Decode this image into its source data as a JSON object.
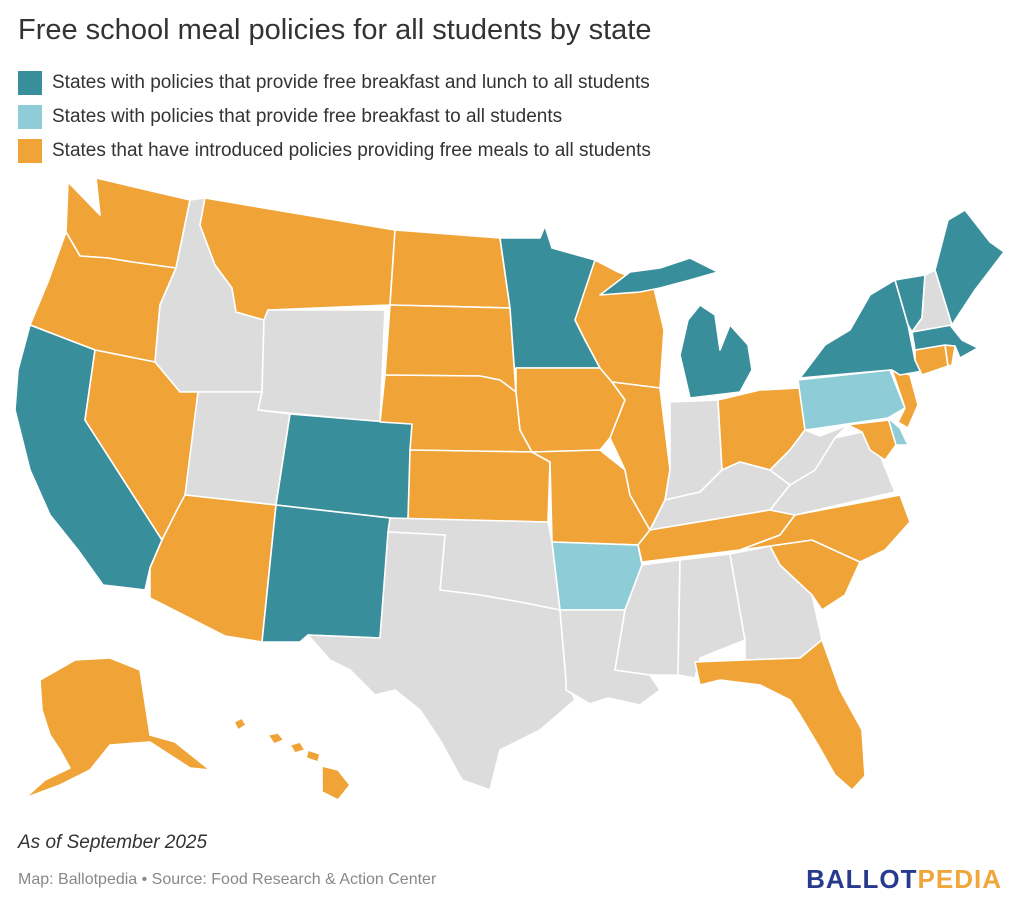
{
  "title": "Free school meal policies for all students by state",
  "colors": {
    "breakfast_and_lunch": "#398e9b",
    "breakfast_only": "#8ecdd7",
    "introduced": "#f0a336",
    "no_policy": "#dcdcdc",
    "background": "#ffffff"
  },
  "legend": [
    {
      "category": "breakfast_and_lunch",
      "label": "States with policies that provide free breakfast and lunch to all students"
    },
    {
      "category": "breakfast_only",
      "label": "States with policies that provide free breakfast to all students"
    },
    {
      "category": "introduced",
      "label": "States that have introduced policies providing free meals to all students"
    }
  ],
  "states": [
    {
      "abbr": "WA",
      "category": "introduced"
    },
    {
      "abbr": "OR",
      "category": "introduced"
    },
    {
      "abbr": "CA",
      "category": "breakfast_and_lunch"
    },
    {
      "abbr": "ID",
      "category": "no_policy"
    },
    {
      "abbr": "NV",
      "category": "introduced"
    },
    {
      "abbr": "MT",
      "category": "introduced"
    },
    {
      "abbr": "WY",
      "category": "no_policy"
    },
    {
      "abbr": "UT",
      "category": "no_policy"
    },
    {
      "abbr": "AZ",
      "category": "introduced"
    },
    {
      "abbr": "CO",
      "category": "breakfast_and_lunch"
    },
    {
      "abbr": "NM",
      "category": "breakfast_and_lunch"
    },
    {
      "abbr": "ND",
      "category": "introduced"
    },
    {
      "abbr": "SD",
      "category": "introduced"
    },
    {
      "abbr": "NE",
      "category": "introduced"
    },
    {
      "abbr": "KS",
      "category": "introduced"
    },
    {
      "abbr": "OK",
      "category": "no_policy"
    },
    {
      "abbr": "TX",
      "category": "no_policy"
    },
    {
      "abbr": "MN",
      "category": "breakfast_and_lunch"
    },
    {
      "abbr": "IA",
      "category": "introduced"
    },
    {
      "abbr": "MO",
      "category": "introduced"
    },
    {
      "abbr": "AR",
      "category": "breakfast_only"
    },
    {
      "abbr": "LA",
      "category": "no_policy"
    },
    {
      "abbr": "WI",
      "category": "introduced"
    },
    {
      "abbr": "IL",
      "category": "introduced"
    },
    {
      "abbr": "MI",
      "category": "breakfast_and_lunch"
    },
    {
      "abbr": "IN",
      "category": "no_policy"
    },
    {
      "abbr": "OH",
      "category": "introduced"
    },
    {
      "abbr": "KY",
      "category": "no_policy"
    },
    {
      "abbr": "TN",
      "category": "introduced"
    },
    {
      "abbr": "MS",
      "category": "no_policy"
    },
    {
      "abbr": "AL",
      "category": "no_policy"
    },
    {
      "abbr": "GA",
      "category": "no_policy"
    },
    {
      "abbr": "FL",
      "category": "introduced"
    },
    {
      "abbr": "SC",
      "category": "introduced"
    },
    {
      "abbr": "NC",
      "category": "introduced"
    },
    {
      "abbr": "VA",
      "category": "no_policy"
    },
    {
      "abbr": "WV",
      "category": "no_policy"
    },
    {
      "abbr": "MD",
      "category": "introduced"
    },
    {
      "abbr": "DE",
      "category": "breakfast_only"
    },
    {
      "abbr": "PA",
      "category": "breakfast_only"
    },
    {
      "abbr": "NJ",
      "category": "introduced"
    },
    {
      "abbr": "NY",
      "category": "breakfast_and_lunch"
    },
    {
      "abbr": "CT",
      "category": "introduced"
    },
    {
      "abbr": "RI",
      "category": "introduced"
    },
    {
      "abbr": "MA",
      "category": "breakfast_and_lunch"
    },
    {
      "abbr": "VT",
      "category": "breakfast_and_lunch"
    },
    {
      "abbr": "NH",
      "category": "no_policy"
    },
    {
      "abbr": "ME",
      "category": "breakfast_and_lunch"
    },
    {
      "abbr": "AK",
      "category": "introduced"
    },
    {
      "abbr": "HI",
      "category": "introduced"
    }
  ],
  "as_of": "As of September 2025",
  "source": "Map: Ballotpedia • Source: Food Research & Action Center",
  "logo": {
    "part1": "BALLOT",
    "part2": "PEDIA"
  }
}
